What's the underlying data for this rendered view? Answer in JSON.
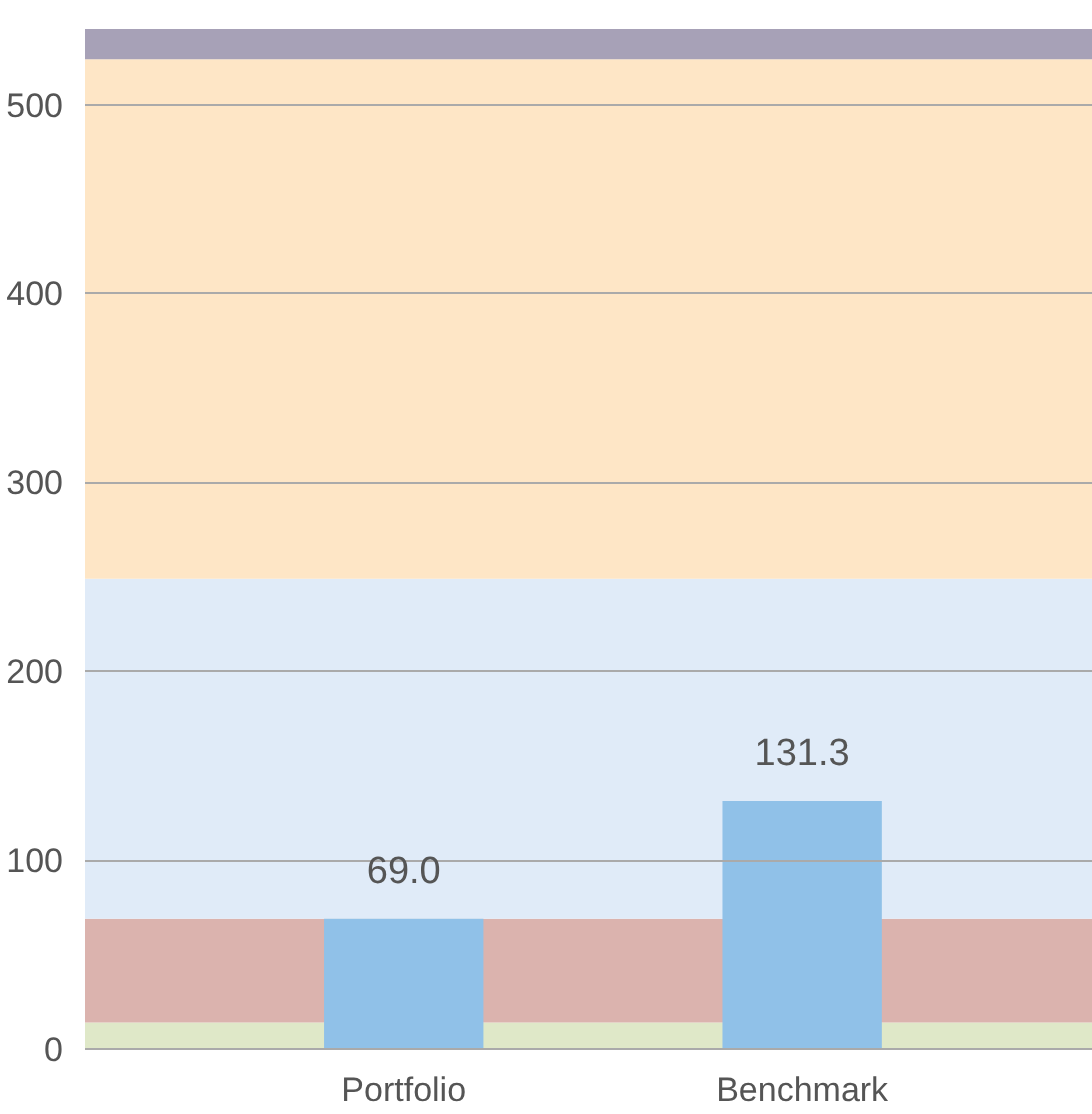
{
  "chart_data": {
    "type": "bar",
    "categories": [
      "Portfolio",
      "Benchmark"
    ],
    "values": [
      69.0,
      131.3
    ],
    "color": "#90c1e8",
    "value_labels": [
      "69.0",
      "131.3"
    ],
    "ylim": [
      0,
      540
    ],
    "yticks": [
      0,
      100,
      200,
      300,
      400,
      500
    ],
    "grid": "y",
    "bands": [
      {
        "axis": "y",
        "from": 0,
        "to": 14,
        "color": "#dfe8c8"
      },
      {
        "axis": "y",
        "from": 14,
        "to": 69,
        "color": "#dbb3ae"
      },
      {
        "axis": "y",
        "from": 69,
        "to": 249,
        "color": "#e0ebf8"
      },
      {
        "axis": "y",
        "from": 249,
        "to": 524,
        "color": "#fee6c6"
      },
      {
        "axis": "y",
        "from": 524,
        "to": 540,
        "color": "#a7a1b7"
      }
    ]
  }
}
